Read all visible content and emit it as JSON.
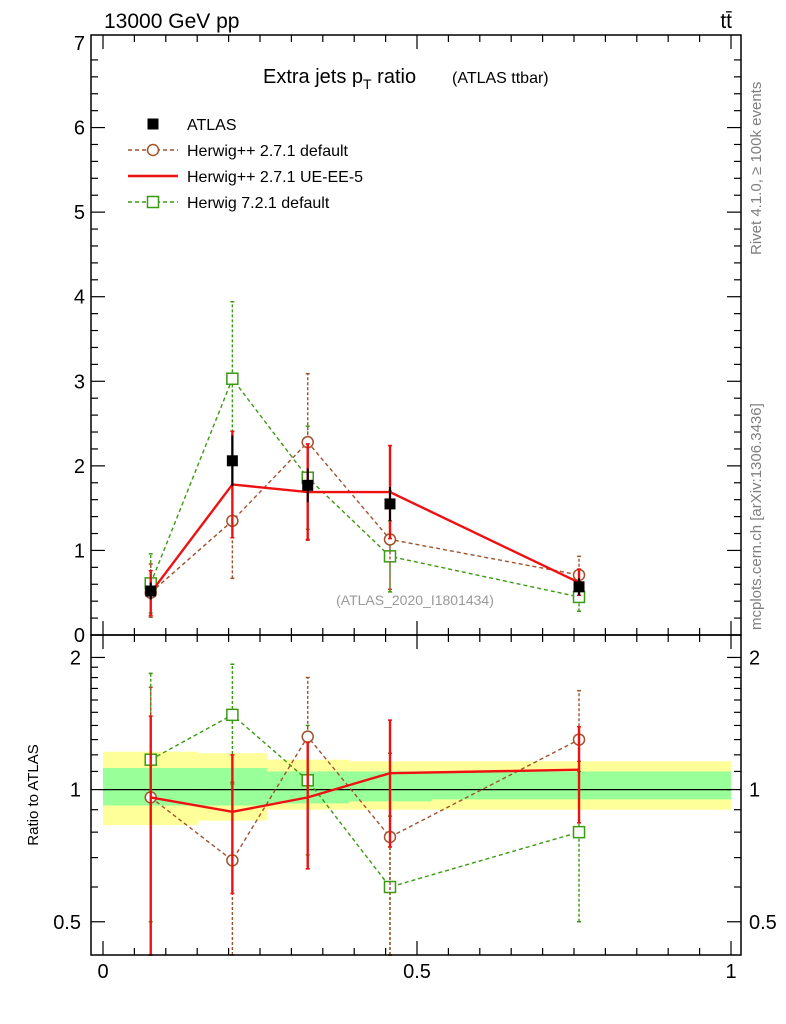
{
  "header": {
    "energy_label": "13000 GeV pp",
    "process_label": "tt̄",
    "side_top": "Rivet 4.1.0, ≥ 100k events",
    "side_bottom": "mcplots.cern.ch [arXiv:1306.3436]"
  },
  "colors": {
    "atlas": "#000000",
    "herwig271_default": "#a0522d",
    "herwig271_ueee5": "#ee1111",
    "herwig721_default": "#3a9a10",
    "band_inner": "#99ff99",
    "band_outer": "#ffff99"
  },
  "chart_data": [
    {
      "type": "line",
      "title": "Extra jets p",
      "title_sub": "T",
      "title_suffix": " ratio",
      "title_extra": "(ATLAS ttbar)",
      "analysis_label": "(ATLAS_2020_I1801434)",
      "xlim": [
        0,
        1
      ],
      "ylim": [
        0,
        7
      ],
      "yticks": [
        "0",
        "1",
        "2",
        "3",
        "4",
        "5",
        "6",
        "7"
      ],
      "legend_position": "top-left",
      "legend": [
        "ATLAS",
        "Herwig++ 2.7.1 default",
        "Herwig++ 2.7.1 UE-EE-5",
        "Herwig 7.2.1 default"
      ],
      "series": [
        {
          "name": "ATLAS",
          "key": "atlas",
          "style": "marker",
          "x": [
            0.076,
            0.206,
            0.326,
            0.457,
            0.758
          ],
          "y": [
            0.52,
            2.06,
            1.77,
            1.55,
            0.57
          ],
          "yerr": [
            0.1,
            0.3,
            0.2,
            0.2,
            0.1
          ]
        },
        {
          "name": "Herwig++ 2.7.1 default",
          "key": "herwig271_default",
          "style": "circle",
          "x": [
            0.076,
            0.206,
            0.326,
            0.457,
            0.758
          ],
          "y": [
            0.5,
            1.35,
            2.28,
            1.13,
            0.71
          ],
          "err_lo": [
            0.29,
            0.68,
            1.16,
            0.59,
            0.08
          ],
          "err_hi": [
            0.34,
            0.69,
            0.81,
            0.57,
            0.22
          ]
        },
        {
          "name": "Herwig++ 2.7.1 UE-EE-5",
          "key": "herwig271_ueee5",
          "style": "solid",
          "x": [
            0.076,
            0.206,
            0.326,
            0.457,
            0.758
          ],
          "y": [
            0.5,
            1.78,
            1.69,
            1.69,
            0.62
          ],
          "err_lo": [
            0.27,
            0.63,
            0.56,
            0.55,
            0.15
          ],
          "err_hi": [
            0.26,
            0.63,
            0.57,
            0.55,
            0.16
          ]
        },
        {
          "name": "Herwig 7.2.1 default",
          "key": "herwig721_default",
          "style": "square",
          "x": [
            0.076,
            0.206,
            0.326,
            0.457,
            0.758
          ],
          "y": [
            0.61,
            3.03,
            1.86,
            0.93,
            0.45
          ],
          "err_lo": [
            0.35,
            0.93,
            0.61,
            0.42,
            0.17
          ],
          "err_hi": [
            0.35,
            0.91,
            0.61,
            0.42,
            0.17
          ]
        }
      ]
    },
    {
      "type": "line",
      "ylabel": "Ratio to ATLAS",
      "xlim": [
        0,
        1
      ],
      "ylim": [
        0.42,
        2.25
      ],
      "yscale": "log",
      "yticks_major": [
        0.5,
        1,
        2
      ],
      "ytick_labels": [
        "0.5",
        "1",
        "2"
      ],
      "xticks": [
        0,
        0.5,
        1
      ],
      "xtick_labels": [
        "0",
        "0.5",
        "1"
      ],
      "band_edges": [
        0,
        0.152,
        0.261,
        0.392,
        0.523,
        1.0
      ],
      "band_inner_lo": [
        0.92,
        0.92,
        0.93,
        0.94,
        0.95
      ],
      "band_inner_hi": [
        1.12,
        1.12,
        1.1,
        1.1,
        1.1
      ],
      "band_outer_lo": [
        0.83,
        0.85,
        0.9,
        0.9,
        0.9
      ],
      "band_outer_hi": [
        1.22,
        1.21,
        1.17,
        1.16,
        1.16
      ],
      "series": [
        {
          "name": "Herwig++ 2.7.1 default",
          "key": "herwig271_default",
          "style": "circle",
          "x": [
            0.076,
            0.206,
            0.326,
            0.457,
            0.758
          ],
          "y": [
            0.96,
            0.69,
            1.32,
            0.78,
            1.3
          ],
          "err_lo": [
            0.7,
            0.35,
            0.66,
            0.4,
            0.14
          ],
          "err_hi": [
            0.75,
            0.35,
            0.48,
            0.43,
            0.38
          ]
        },
        {
          "name": "Herwig++ 2.7.1 UE-EE-5",
          "key": "herwig271_ueee5",
          "style": "solid",
          "x": [
            0.076,
            0.206,
            0.326,
            0.457,
            0.758
          ],
          "y": [
            0.96,
            0.89,
            0.96,
            1.09,
            1.11
          ],
          "err_lo": [
            0.55,
            0.31,
            0.3,
            0.35,
            0.27
          ],
          "err_hi": [
            0.51,
            0.31,
            0.32,
            0.35,
            0.28
          ]
        },
        {
          "name": "Herwig 7.2.1 default",
          "key": "herwig721_default",
          "style": "square",
          "x": [
            0.076,
            0.206,
            0.326,
            0.457,
            0.758
          ],
          "y": [
            1.17,
            1.48,
            1.05,
            0.6,
            0.8
          ],
          "err_lo": [
            0.67,
            0.45,
            0.34,
            0.27,
            0.3
          ],
          "err_hi": [
            0.67,
            0.45,
            0.35,
            0.27,
            0.3
          ]
        }
      ]
    }
  ]
}
